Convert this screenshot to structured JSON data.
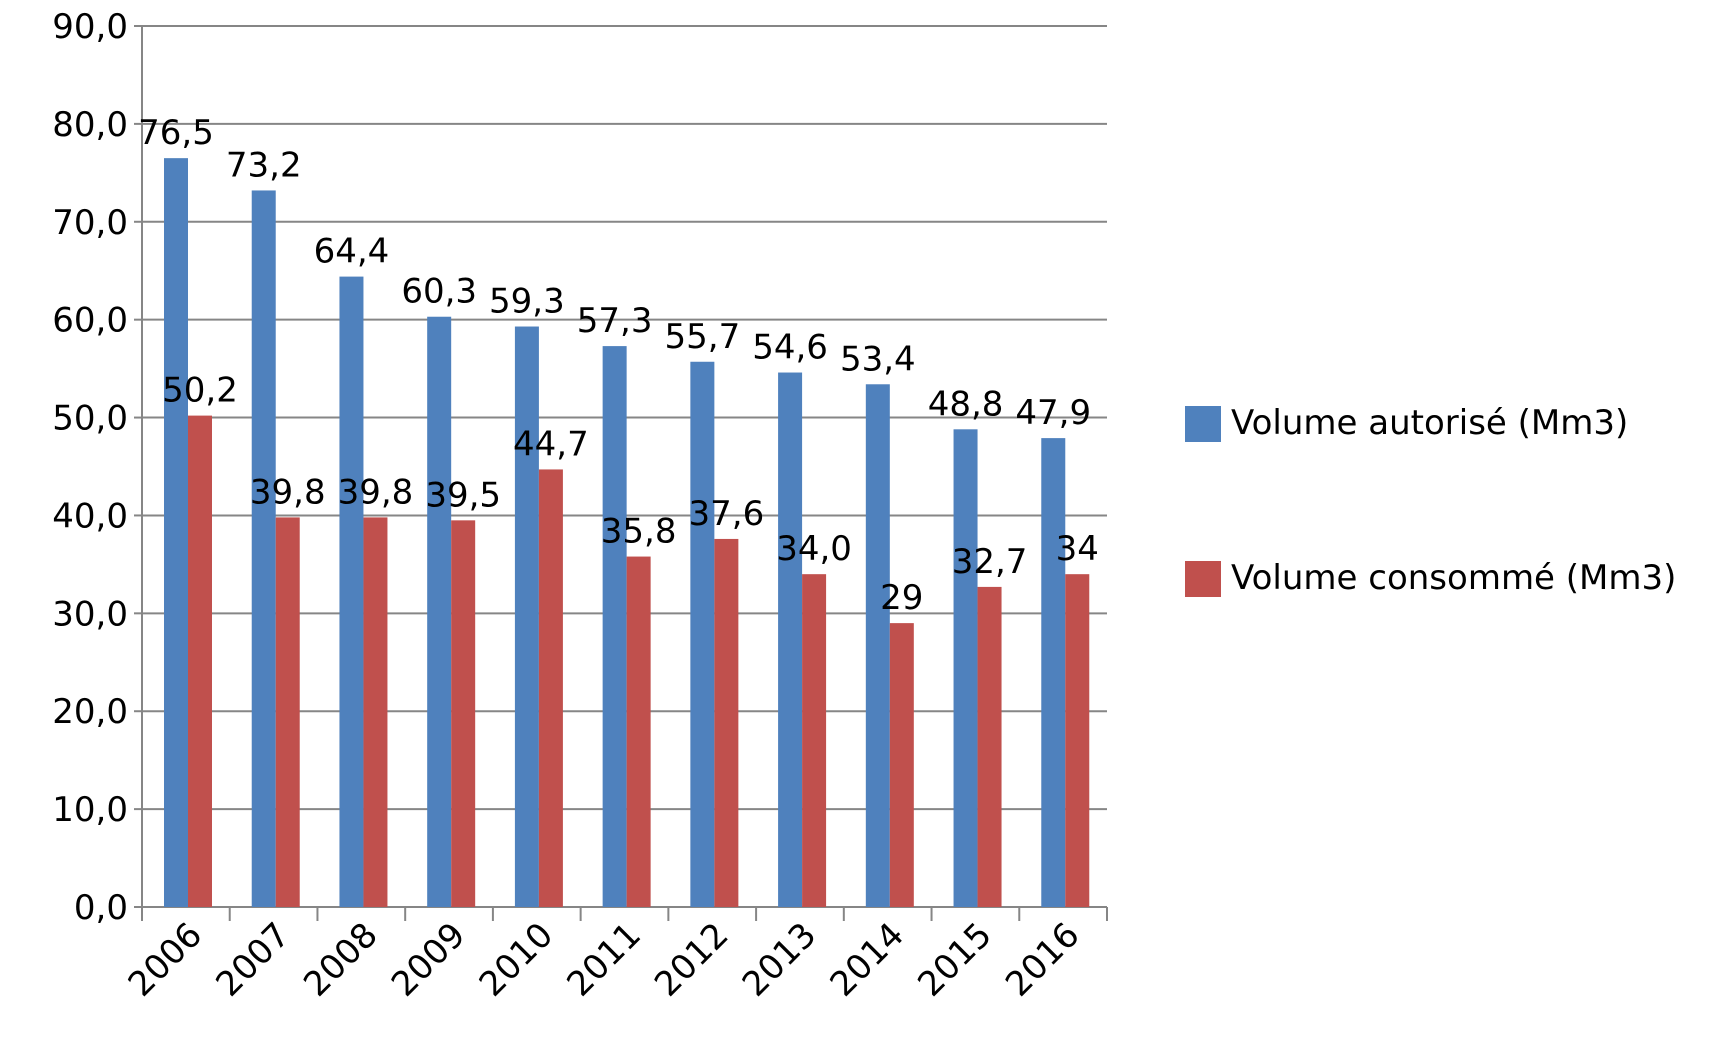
{
  "chart_data": {
    "type": "bar",
    "categories": [
      "2006",
      "2007",
      "2008",
      "2009",
      "2010",
      "2011",
      "2012",
      "2013",
      "2014",
      "2015",
      "2016"
    ],
    "series": [
      {
        "name": "Volume autorisé (Mm3)",
        "color": "#4f81bd",
        "values": [
          76.5,
          73.2,
          64.4,
          60.3,
          59.3,
          57.3,
          55.7,
          54.6,
          53.4,
          48.8,
          47.9
        ],
        "value_labels": [
          "76,5",
          "73,2",
          "64,4",
          "60,3",
          "59,3",
          "57,3",
          "55,7",
          "54,6",
          "53,4",
          "48,8",
          "47,9"
        ]
      },
      {
        "name": "Volume consommé (Mm3)",
        "color": "#c0504d",
        "values": [
          50.2,
          39.8,
          39.8,
          39.5,
          44.7,
          35.8,
          37.6,
          34.0,
          29,
          32.7,
          34
        ],
        "value_labels": [
          "50,2",
          "39,8",
          "39,8",
          "39,5",
          "44,7",
          "35,8",
          "37,6",
          "34,0",
          "29",
          "32,7",
          "34"
        ]
      }
    ],
    "ylim": [
      0,
      90
    ],
    "yticks": [
      {
        "value": 0,
        "label": "0,0"
      },
      {
        "value": 10,
        "label": "10,0"
      },
      {
        "value": 20,
        "label": "20,0"
      },
      {
        "value": 30,
        "label": "30,0"
      },
      {
        "value": 40,
        "label": "40,0"
      },
      {
        "value": 50,
        "label": "50,0"
      },
      {
        "value": 60,
        "label": "60,0"
      },
      {
        "value": 70,
        "label": "70,0"
      },
      {
        "value": 80,
        "label": "80,0"
      },
      {
        "value": 90,
        "label": "90,0"
      }
    ],
    "grid": true,
    "legend": "right"
  }
}
